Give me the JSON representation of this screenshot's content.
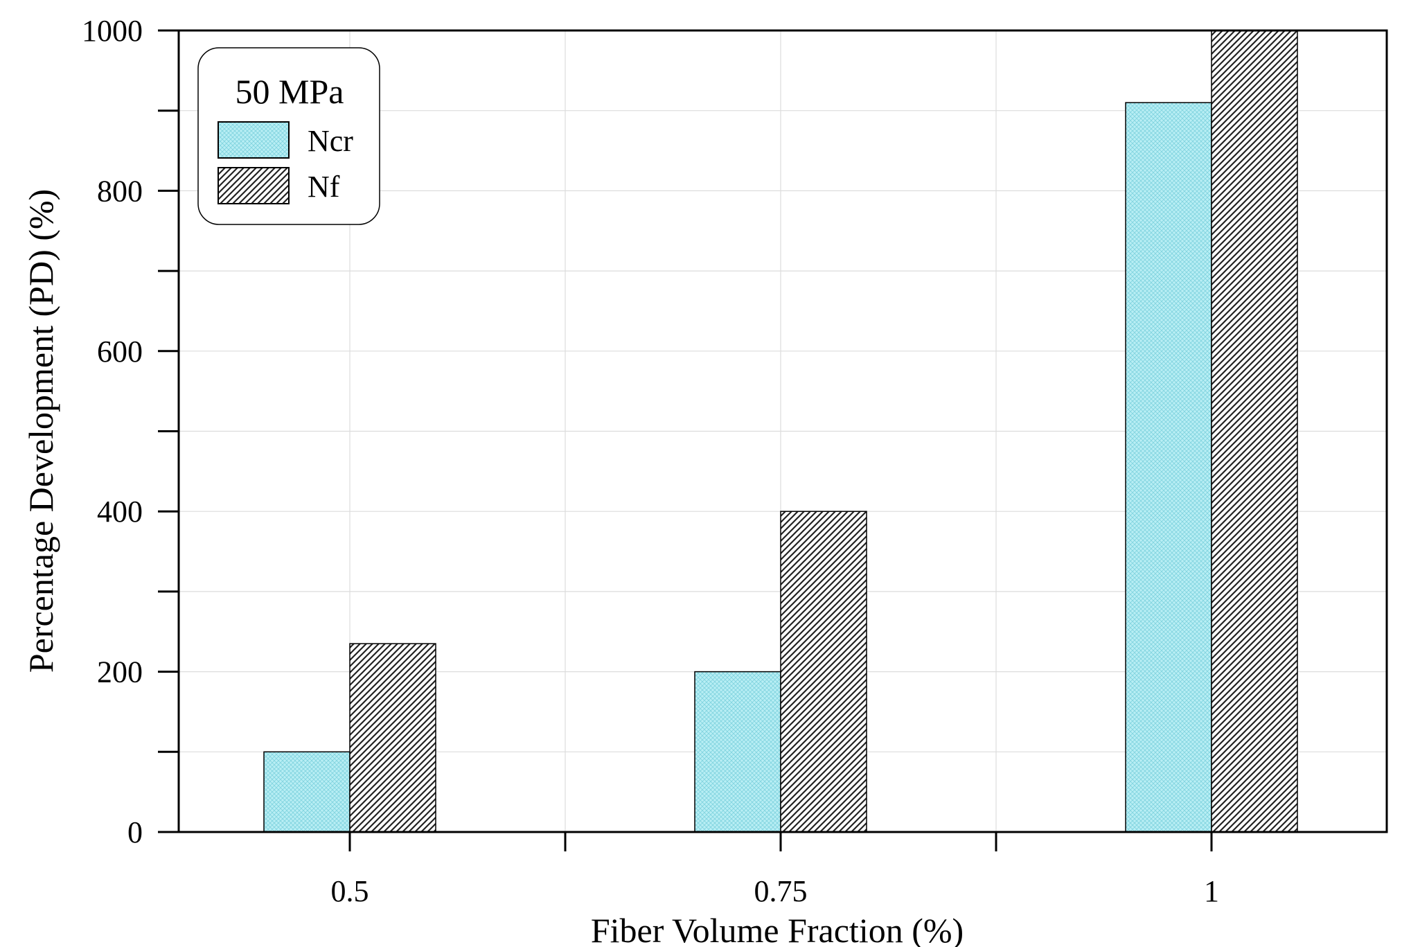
{
  "chart_data": {
    "type": "bar",
    "title": "",
    "xlabel": "Fiber Volume Fraction (%)",
    "ylabel": "Percentage Development (PD) (%)",
    "categories": [
      "0.5",
      "0.75",
      "1"
    ],
    "series": [
      {
        "name": "Ncr",
        "values": [
          100,
          200,
          910
        ],
        "color": "#b8eef4",
        "pattern": "crosshatch"
      },
      {
        "name": "Nf",
        "values": [
          235,
          400,
          1000
        ],
        "color": "#ffffff",
        "pattern": "diagonal"
      }
    ],
    "ylim": [
      0,
      1000
    ],
    "yticks": [
      0,
      200,
      400,
      600,
      800,
      1000
    ],
    "y_minor_ticks": [
      100,
      300,
      500,
      700,
      900
    ],
    "grid": true,
    "legend": {
      "title": "50 MPa",
      "position": "top-left"
    }
  }
}
